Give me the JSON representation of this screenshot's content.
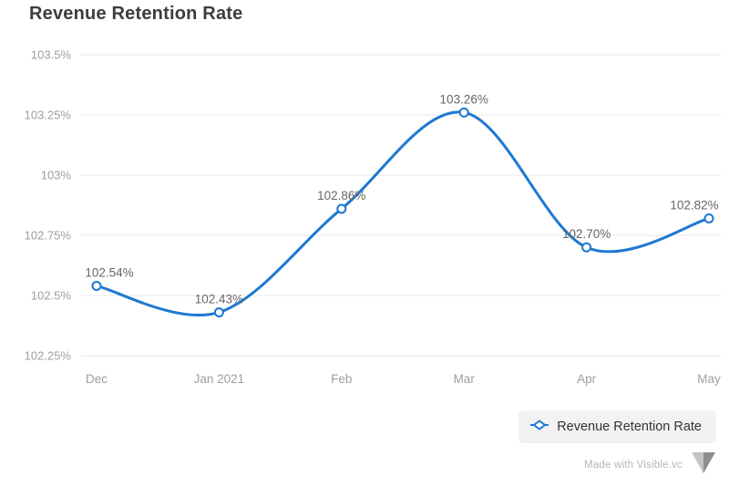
{
  "title": "Revenue Retention Rate",
  "legend": {
    "label": "Revenue Retention Rate"
  },
  "watermark": {
    "text": "Made with Visible.vc"
  },
  "colors": {
    "line": "#1e78d2",
    "grid": "#e8e8e8",
    "axis_label": "#9e9e9e",
    "data_label": "#666666",
    "title": "#3d3d3d",
    "legend_bg": "#f2f2f2",
    "legend_text": "#333333",
    "watermark_text": "#b5b5b5",
    "logo_light": "#c4c4c4",
    "logo_dark": "#8e8e8e"
  },
  "chart_data": {
    "type": "line",
    "title": "Revenue Retention Rate",
    "categories": [
      "Dec",
      "Jan 2021",
      "Feb",
      "Mar",
      "Apr",
      "May"
    ],
    "series": [
      {
        "name": "Revenue Retention Rate",
        "values": [
          102.54,
          102.43,
          102.86,
          103.26,
          102.7,
          102.82
        ]
      }
    ],
    "data_labels": [
      "102.54%",
      "102.43%",
      "102.86%",
      "103.26%",
      "102.70%",
      "102.82%"
    ],
    "xlabel": "",
    "ylabel": "",
    "ylim": [
      102.25,
      103.5
    ],
    "yticks": [
      102.25,
      102.5,
      102.75,
      103,
      103.25,
      103.5
    ],
    "ytick_labels": [
      "102.25%",
      "102.5%",
      "102.75%",
      "103%",
      "103.25%",
      "103.5%"
    ],
    "grid": true,
    "line_style": "spline",
    "marker": "circle-white-fill",
    "legend_position": "bottom-right"
  }
}
